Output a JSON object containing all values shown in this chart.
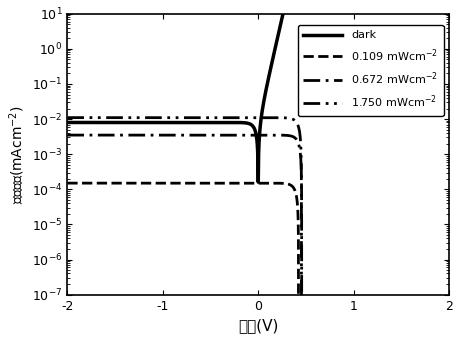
{
  "title": "",
  "xlabel": "电压(V)",
  "ylabel": "电流密度(mAcm$^{-2}$)",
  "xlim": [
    -2,
    2
  ],
  "ylim": [
    1e-07,
    10
  ],
  "dark_J0": 5e-08,
  "dark_n": 1.4,
  "dark_scale_at_neg2": 0.008,
  "light1_Jsc": 0.00015,
  "light1_J0": 3e-09,
  "light1_n": 1.5,
  "light2_Jsc": 0.0035,
  "light2_J0": 3e-08,
  "light2_n": 1.5,
  "light3_Jsc": 0.011,
  "light3_J0": 1e-07,
  "light3_n": 1.5,
  "background_color": "#ffffff",
  "legend_labels": [
    "dark",
    "0.109 mWcm$^{-2}$",
    "0.672 mWcm$^{-2}$",
    "1.750 mWcm$^{-2}$"
  ]
}
